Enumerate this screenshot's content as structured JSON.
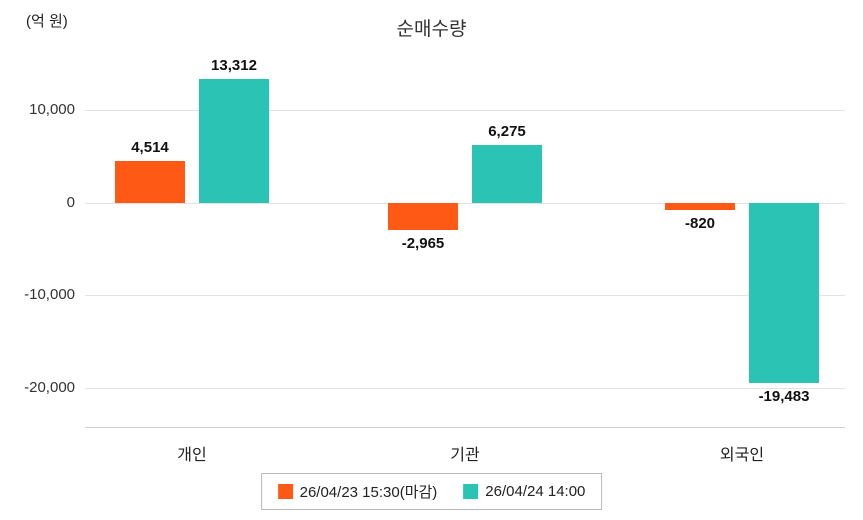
{
  "chart_data": {
    "type": "bar",
    "title": "순매수량",
    "unit_label": "(억 원)",
    "categories": [
      "개인",
      "기관",
      "외국인"
    ],
    "series": [
      {
        "name": "26/04/23 15:30(마감)",
        "color": "#FF5A15",
        "values": [
          4514,
          -2965,
          -820
        ],
        "labels": [
          "4,514",
          "-2,965",
          "-820"
        ]
      },
      {
        "name": "26/04/24 14:00",
        "color": "#2BC4B4",
        "values": [
          13312,
          6275,
          -19483
        ],
        "labels": [
          "13,312",
          "6,275",
          "-19,483"
        ]
      }
    ],
    "yticks": [
      {
        "value": 10000,
        "label": "10,000"
      },
      {
        "value": 0,
        "label": "0"
      },
      {
        "value": -10000,
        "label": "-10,000"
      },
      {
        "value": -20000,
        "label": "-20,000"
      }
    ],
    "ylim": [
      -24200,
      15400
    ],
    "grid": true,
    "legend_position": "bottom"
  }
}
